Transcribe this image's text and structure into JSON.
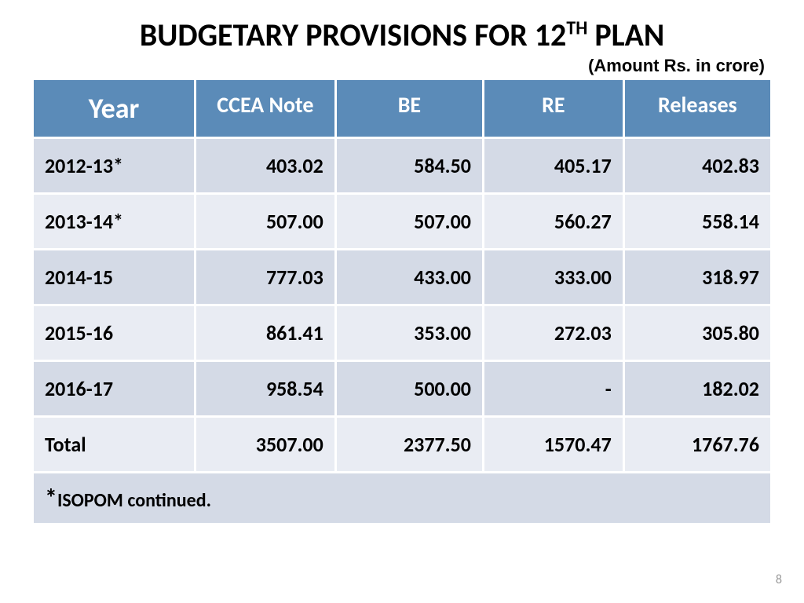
{
  "title_prefix": "BUDGETARY PROVISIONS FOR 12",
  "title_sup": "TH",
  "title_suffix": " PLAN",
  "subtitle": "(Amount Rs. in crore)",
  "table": {
    "columns": [
      "Year",
      "CCEA Note",
      "BE",
      "RE",
      "Releases"
    ],
    "column_widths": [
      "22%",
      "19%",
      "20%",
      "19%",
      "20%"
    ],
    "rows": [
      {
        "year": "2012-13*",
        "ccea": "403.02",
        "be": "584.50",
        "re": "405.17",
        "releases": "402.83"
      },
      {
        "year": "2013-14*",
        "ccea": "507.00",
        "be": "507.00",
        "re": "560.27",
        "releases": "558.14"
      },
      {
        "year": "2014-15",
        "ccea": "777.03",
        "be": "433.00",
        "re": "333.00",
        "releases": "318.97"
      },
      {
        "year": "2015-16",
        "ccea": "861.41",
        "be": "353.00",
        "re": "272.03",
        "releases": "305.80"
      },
      {
        "year": "2016-17",
        "ccea": "958.54",
        "be": "500.00",
        "re": "-",
        "releases": "182.02"
      },
      {
        "year": "Total",
        "ccea": "3507.00",
        "be": "2377.50",
        "re": "1570.47",
        "releases": "1767.76"
      }
    ]
  },
  "footnote_star": "*",
  "footnote_text": "ISOPOM continued.",
  "page_number": "8",
  "colors": {
    "header_bg": "#5b8bb8",
    "header_text": "#ffffff",
    "row_odd_bg": "#d4dae6",
    "row_even_bg": "#e9ecf3",
    "text": "#000000",
    "page_num": "#9a9a9a"
  }
}
